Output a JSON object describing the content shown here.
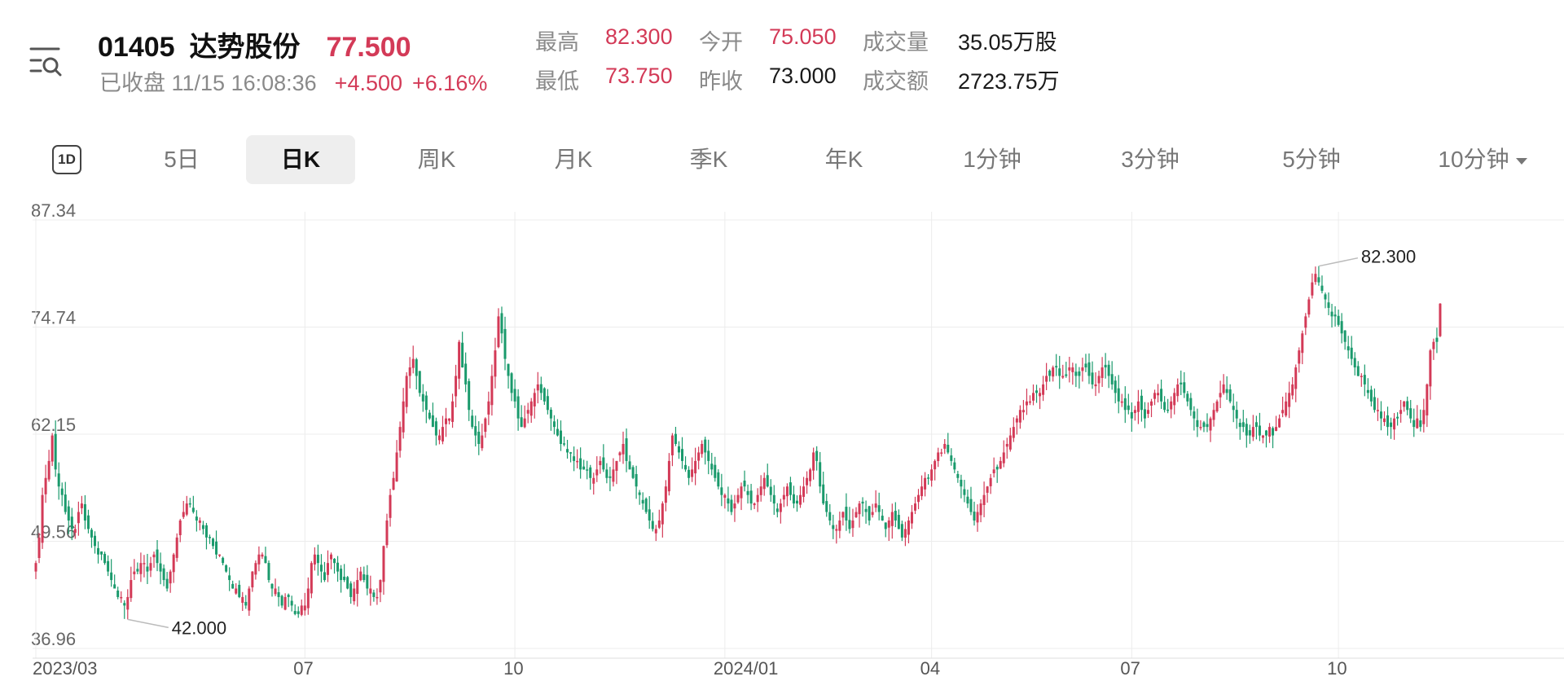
{
  "header": {
    "code": "01405",
    "name": "达势股份",
    "price": "77.500",
    "status": "已收盘 11/15 16:08:36",
    "change": "+4.500",
    "change_pct": "+6.16%"
  },
  "stats": {
    "high_label": "最高",
    "high": "82.300",
    "open_label": "今开",
    "open": "75.050",
    "volume_label": "成交量",
    "volume": "35.05万股",
    "low_label": "最低",
    "low": "73.750",
    "prev_close_label": "昨收",
    "prev_close": "73.000",
    "turnover_label": "成交额",
    "turnover": "2723.75万"
  },
  "tabs": {
    "tab_1d": "1D",
    "items": [
      "5日",
      "日K",
      "周K",
      "月K",
      "季K",
      "年K",
      "1分钟",
      "3分钟",
      "5分钟",
      "10分钟"
    ],
    "active": "日K"
  },
  "colors": {
    "up": "#d33a57",
    "down": "#1a9a6c",
    "grid": "#ececec"
  },
  "chart_data": {
    "type": "candlestick",
    "y_ticks": [
      "87.34",
      "74.74",
      "62.15",
      "49.56",
      "36.96"
    ],
    "ylim": [
      36.96,
      87.34
    ],
    "x_ticks": [
      "2023/03",
      "07",
      "10",
      "2024/01",
      "04",
      "07",
      "10"
    ],
    "x_tick_months": [
      "2023-03",
      "2023-07",
      "2023-10",
      "2024-01",
      "2024-04",
      "2024-07",
      "2024-10"
    ],
    "max_annotation": "82.300",
    "min_annotation": "42.000",
    "closes": [
      {
        "m": "2023-03",
        "v": [
          47,
          50,
          55,
          57,
          59,
          62,
          58,
          56,
          55,
          53,
          52,
          51,
          51,
          53,
          54,
          52,
          51,
          50,
          49,
          48
        ]
      },
      {
        "m": "2023-04",
        "v": [
          48,
          47,
          46,
          45,
          44,
          43,
          43,
          42,
          43,
          45,
          46,
          46,
          47,
          47,
          46,
          47,
          48,
          47,
          46,
          45
        ]
      },
      {
        "m": "2023-05",
        "v": [
          44,
          46,
          48,
          50,
          52,
          53,
          54,
          54,
          53,
          52,
          52,
          51,
          50,
          50,
          49,
          48,
          48,
          47,
          46,
          45,
          44,
          44
        ]
      },
      {
        "m": "2023-06",
        "v": [
          43,
          43,
          42,
          44,
          46,
          47,
          48,
          48,
          47,
          45,
          44,
          44,
          43,
          42,
          43,
          43,
          42,
          41,
          41,
          42
        ]
      },
      {
        "m": "2023-07",
        "v": [
          42,
          44,
          47,
          48,
          47,
          46,
          45,
          47,
          48,
          47,
          46,
          45,
          45,
          44,
          43,
          44,
          45,
          46,
          45,
          44,
          44
        ]
      },
      {
        "m": "2023-08",
        "v": [
          43,
          43,
          45,
          49,
          52,
          55,
          57,
          60,
          63,
          66,
          69,
          70,
          71,
          69,
          67,
          66,
          65,
          64,
          63,
          62,
          62,
          63,
          64
        ]
      },
      {
        "m": "2023-09",
        "v": [
          64,
          66,
          69,
          73,
          70,
          68,
          65,
          63,
          62,
          61,
          62,
          64,
          66,
          69,
          72,
          76,
          74,
          71,
          69,
          67
        ]
      },
      {
        "m": "2023-10",
        "v": [
          66,
          64,
          63,
          64,
          65,
          66,
          67,
          68,
          67,
          66,
          65,
          64,
          63,
          62,
          61,
          61,
          60,
          60,
          59,
          59,
          58
        ]
      },
      {
        "m": "2023-11",
        "v": [
          58,
          58,
          57,
          57,
          58,
          59,
          58,
          57,
          57,
          58,
          59,
          60,
          61,
          59,
          58,
          57,
          56,
          55,
          54,
          53,
          52,
          51
        ]
      },
      {
        "m": "2023-12",
        "v": [
          51,
          52,
          54,
          56,
          59,
          62,
          61,
          60,
          59,
          58,
          57,
          58,
          59,
          60,
          61,
          60,
          59,
          58,
          57,
          56,
          55
        ]
      },
      {
        "m": "2024-01",
        "v": [
          55,
          54,
          53,
          54,
          55,
          56,
          56,
          55,
          54,
          54,
          55,
          56,
          57,
          56,
          55,
          54,
          53,
          54,
          55,
          56,
          55,
          54
        ]
      },
      {
        "m": "2024-02",
        "v": [
          54,
          55,
          56,
          57,
          58,
          60,
          59,
          56,
          54,
          53,
          52,
          51,
          51,
          52,
          53,
          52,
          51,
          52,
          53,
          54
        ]
      },
      {
        "m": "2024-03",
        "v": [
          54,
          53,
          52,
          53,
          54,
          53,
          52,
          51,
          52,
          53,
          52,
          51,
          50,
          51,
          52,
          53,
          54,
          55,
          56,
          57,
          57
        ]
      },
      {
        "m": "2024-04",
        "v": [
          58,
          59,
          60,
          60,
          61,
          60,
          59,
          58,
          57,
          56,
          55,
          54,
          53,
          52,
          53,
          54,
          55,
          56,
          57,
          58
        ]
      },
      {
        "m": "2024-05",
        "v": [
          58,
          59,
          60,
          61,
          62,
          63,
          64,
          65,
          65,
          66,
          66,
          67,
          67,
          67,
          68,
          69,
          69,
          70,
          70,
          69,
          69
        ]
      },
      {
        "m": "2024-06",
        "v": [
          69,
          70,
          70,
          69,
          69,
          70,
          70,
          69,
          68,
          68,
          69,
          70,
          70,
          69,
          68,
          67,
          66,
          66,
          65,
          65
        ]
      },
      {
        "m": "2024-07",
        "v": [
          64,
          65,
          66,
          65,
          64,
          65,
          66,
          67,
          67,
          66,
          65,
          65,
          66,
          67,
          68,
          68,
          67,
          66,
          65,
          64,
          63,
          63
        ]
      },
      {
        "m": "2024-08",
        "v": [
          63,
          63,
          64,
          65,
          66,
          67,
          68,
          67,
          66,
          65,
          64,
          63,
          63,
          62,
          62,
          63,
          63,
          62,
          62,
          62
        ]
      },
      {
        "m": "2024-09",
        "v": [
          63,
          62,
          63,
          64,
          65,
          66,
          67,
          68,
          70,
          72,
          74,
          76,
          78,
          80,
          81,
          80,
          79,
          78,
          77,
          76,
          76
        ]
      },
      {
        "m": "2024-10",
        "v": [
          75,
          74,
          73,
          72,
          71,
          70,
          69,
          69,
          68,
          67,
          66,
          65,
          65,
          64,
          64,
          63,
          63,
          64,
          64,
          65,
          66,
          65
        ]
      },
      {
        "m": "2024-11",
        "v": [
          64,
          63,
          64,
          63,
          65,
          68,
          72,
          73,
          73,
          77.5
        ]
      }
    ]
  }
}
